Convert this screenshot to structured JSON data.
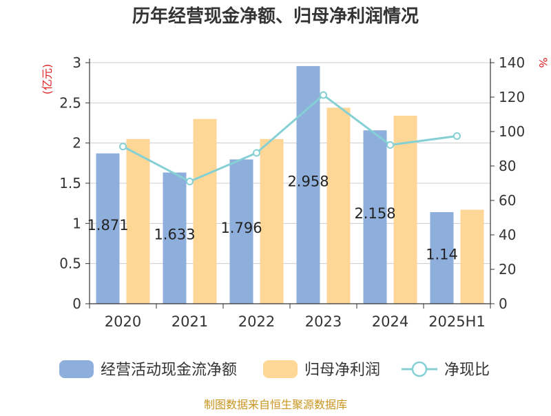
{
  "chart_data": {
    "type": "bar",
    "title": "历年经营现金净额、归母净利润情况",
    "categories": [
      "2020",
      "2021",
      "2022",
      "2023",
      "2024",
      "2025H1"
    ],
    "series": [
      {
        "name": "经营活动现金流净额",
        "type": "bar",
        "axis": "left",
        "color": "#8eaedb",
        "values": [
          1.871,
          1.633,
          1.796,
          2.958,
          2.158,
          1.14
        ],
        "labels": [
          "1.871",
          "1.633",
          "1.796",
          "2.958",
          "2.158",
          "1.14"
        ]
      },
      {
        "name": "归母净利润",
        "type": "bar",
        "axis": "left",
        "color": "#fed797",
        "values": [
          2.05,
          2.3,
          2.05,
          2.44,
          2.34,
          1.17
        ]
      },
      {
        "name": "净现比",
        "type": "line",
        "axis": "right",
        "color": "#85d0d5",
        "values": [
          91.3,
          71.0,
          87.6,
          121.2,
          92.2,
          97.4
        ]
      }
    ],
    "y_left": {
      "label": "(亿元)",
      "min": 0,
      "max": 3,
      "ticks": [
        "0",
        "0.5",
        "1",
        "1.5",
        "2",
        "2.5",
        "3"
      ]
    },
    "y_right": {
      "label": "%",
      "min": 0,
      "max": 140,
      "ticks": [
        "0",
        "20",
        "40",
        "60",
        "80",
        "100",
        "120",
        "140"
      ]
    },
    "grid": true,
    "legend_position": "bottom"
  },
  "footer": {
    "source": "制图数据来自恒生聚源数据库"
  }
}
